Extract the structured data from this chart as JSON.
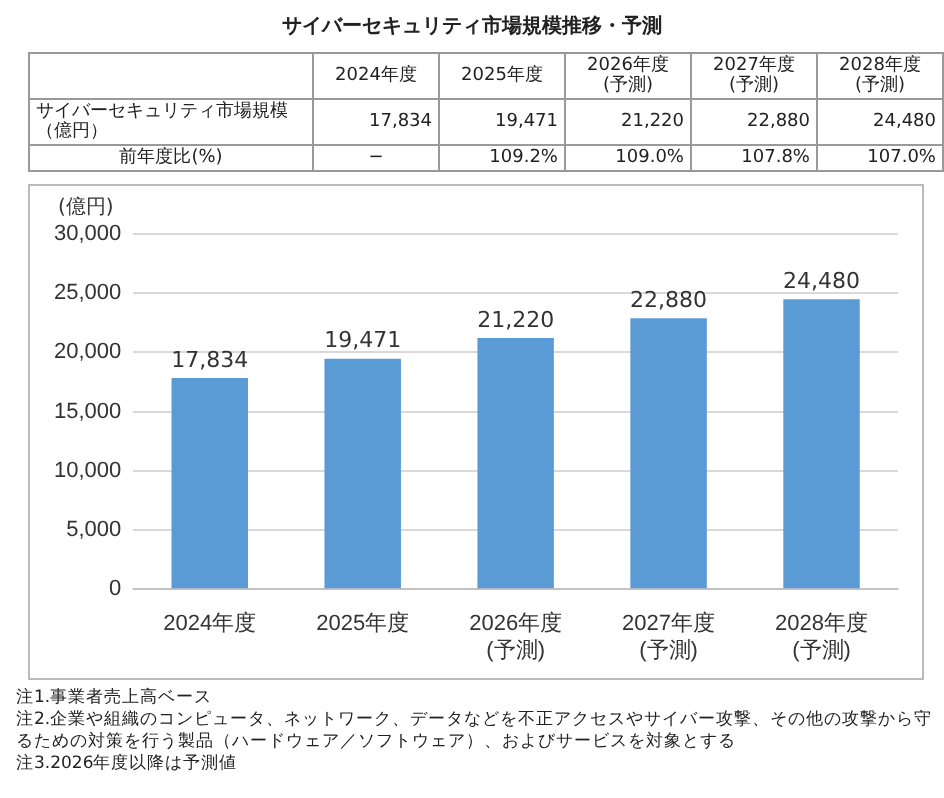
{
  "chart_data": {
    "type": "bar",
    "title": "サイバーセキュリティ市場規模推移・予測",
    "ylabel": "(億円)",
    "categories": [
      "2024年度",
      "2025年度",
      "2026年度\n(予測)",
      "2027年度\n(予測)",
      "2028年度\n(予測)"
    ],
    "series": [
      {
        "name": "サイバーセキュリティ市場規模（億円）",
        "color": "#5b9bd5",
        "values": [
          17834,
          19471,
          21220,
          22880,
          24480
        ],
        "value_labels": [
          "17,834",
          "19,471",
          "21,220",
          "22,880",
          "24,480"
        ]
      }
    ],
    "ylim": [
      0,
      30000
    ],
    "yticks": [
      {
        "value": 0,
        "label": "0"
      },
      {
        "value": 5000,
        "label": "5,000"
      },
      {
        "value": 10000,
        "label": "10,000"
      },
      {
        "value": 15000,
        "label": "15,000"
      },
      {
        "value": 20000,
        "label": "20,000"
      },
      {
        "value": 25000,
        "label": "25,000"
      },
      {
        "value": 30000,
        "label": "30,000"
      }
    ],
    "grid": "y",
    "legend": false,
    "annotations": [
      "前年度比(%)",
      "−",
      "109.2%",
      "109.0%",
      "107.8%",
      "107.0%",
      "注1.事業者売上高ベース",
      "注2.企業や組織のコンピュータ、ネットワーク、データなどを不正アクセスやサイバー攻撃、その他の攻撃から守るための対策を行う製品（ハードウェア／ソフトウェア）、およびサービスを対象とする",
      "注3.2026年度以降は予測値"
    ]
  }
}
